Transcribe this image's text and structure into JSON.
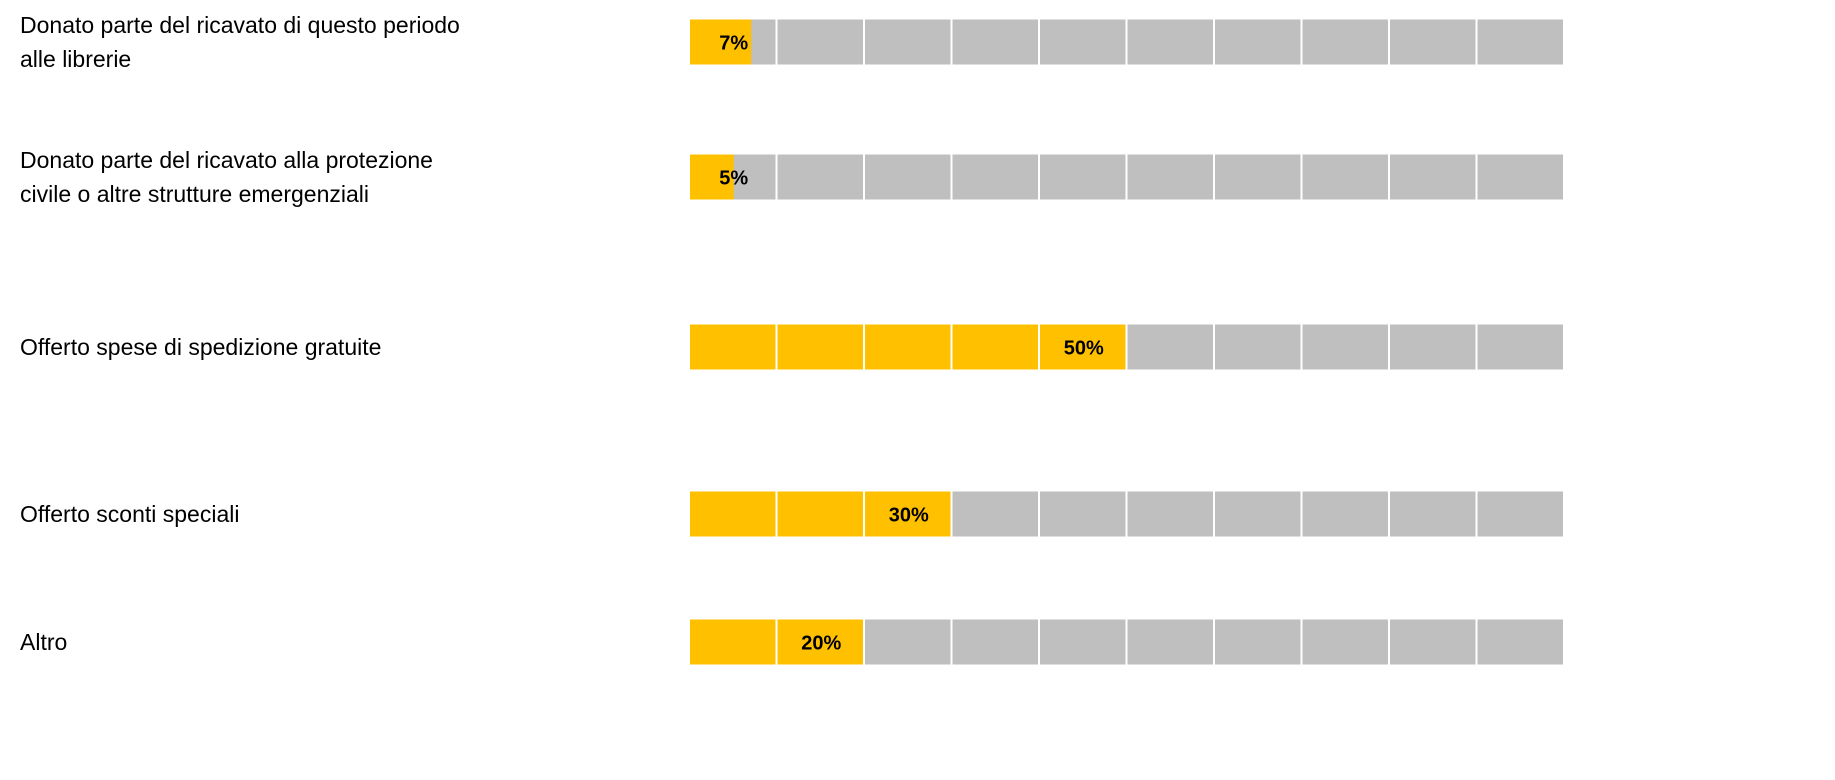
{
  "chart_data": {
    "type": "segmented-bar",
    "categories": [
      "Donato parte del ricavato di questo periodo alle librerie",
      "Donato parte del ricavato alla protezione civile o altre strutture emergenziali",
      "Offerto spese di spedizione gratuite",
      "Offerto sconti speciali",
      "Altro"
    ],
    "values": [
      7,
      5,
      50,
      30,
      20
    ],
    "value_labels": [
      "7%",
      "5%",
      "50%",
      "30%",
      "20%"
    ],
    "xlim": [
      0,
      100
    ],
    "color": "#ffc000",
    "track_color": "#bfbfbf"
  }
}
